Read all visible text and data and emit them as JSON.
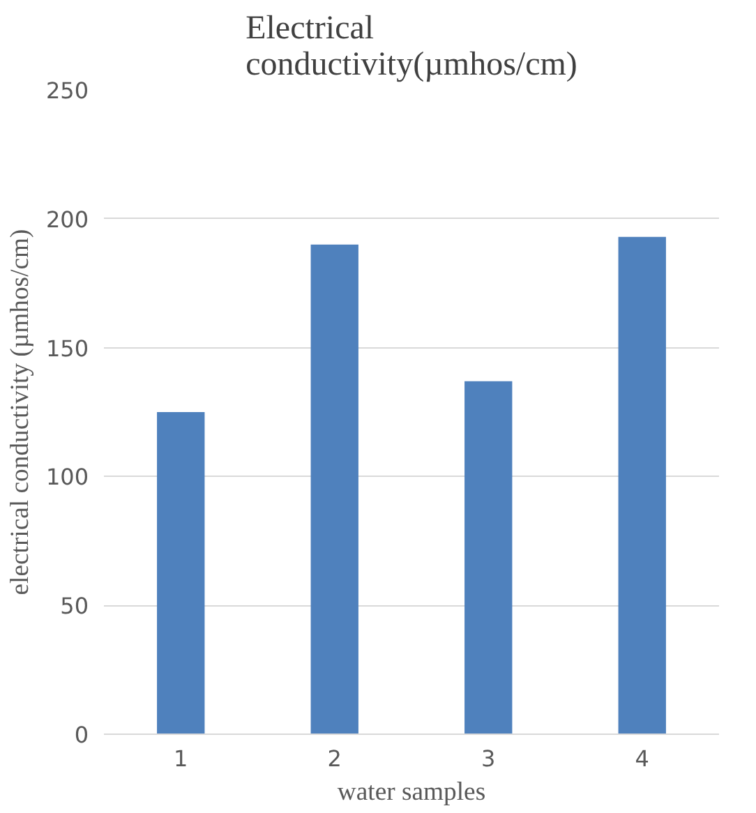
{
  "chart_data": {
    "type": "bar",
    "title": "Electrical\nconductivity(µmhos/cm)",
    "xlabel": "water samples",
    "ylabel": "electrical conductivity (µmhos/cm)",
    "categories": [
      "1",
      "2",
      "3",
      "4"
    ],
    "values": [
      125,
      190,
      137,
      193
    ],
    "color": "#4f81bd",
    "ylim": [
      0,
      250
    ],
    "yticks": [
      0,
      50,
      100,
      150,
      200,
      250
    ],
    "grid": "y"
  }
}
